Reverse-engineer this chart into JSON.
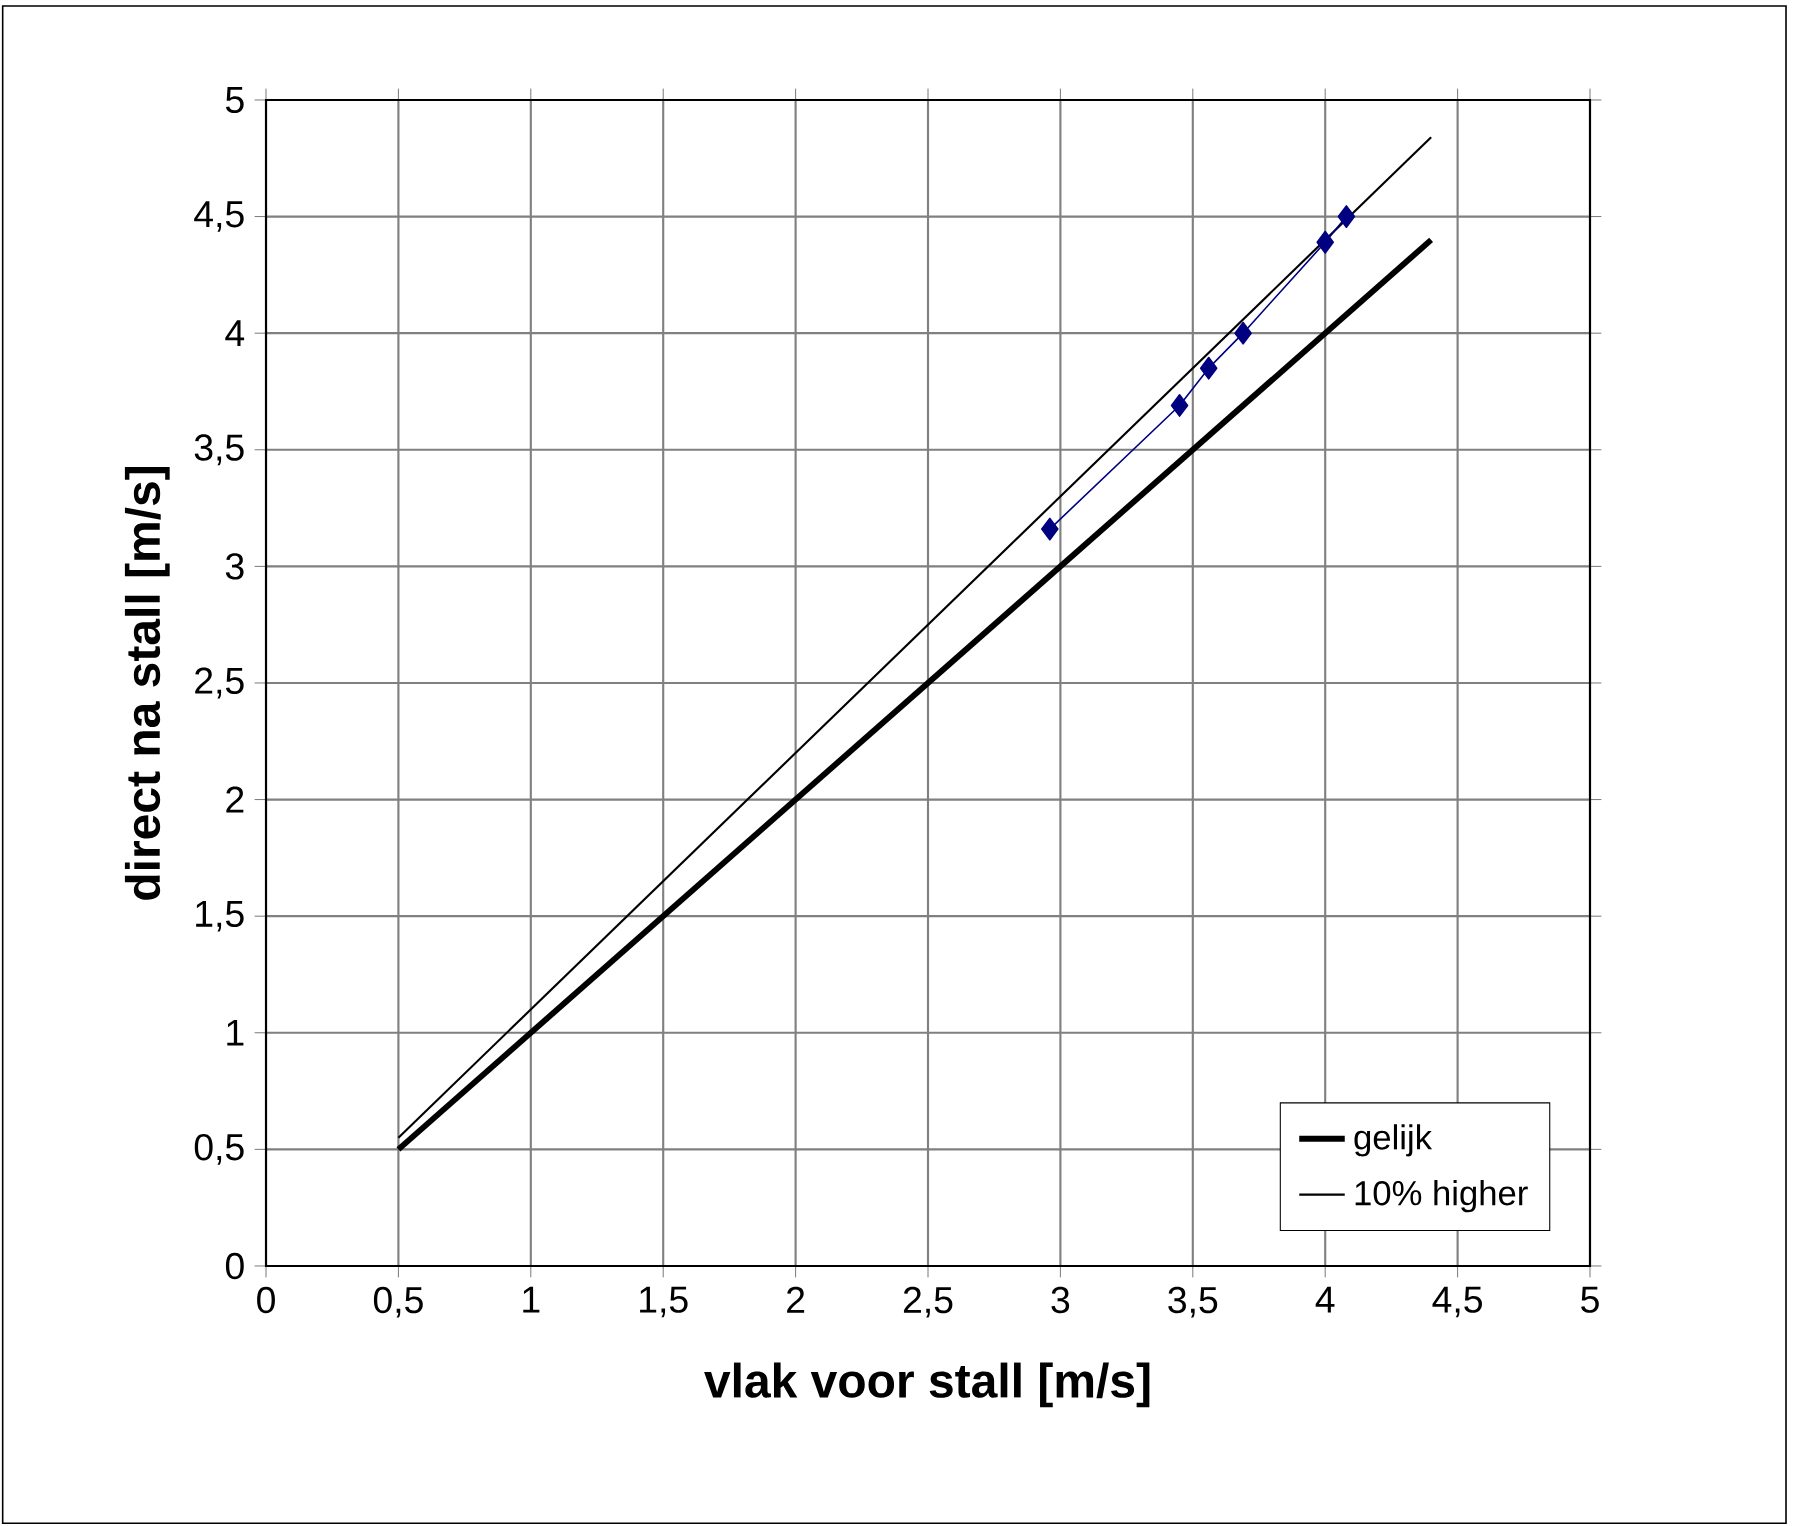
{
  "chart_data": {
    "type": "line",
    "xlabel": "vlak voor stall [m/s]",
    "ylabel": "direct na stall [m/s]",
    "xlim": [
      0,
      5
    ],
    "ylim": [
      0,
      5
    ],
    "xticks": [
      0,
      {
        "value": 0.5,
        "label": "0,5"
      },
      1,
      {
        "value": 1.5,
        "label": "1,5"
      },
      2,
      {
        "value": 2.5,
        "label": "2,5"
      },
      3,
      {
        "value": 3.5,
        "label": "3,5"
      },
      4,
      {
        "value": 4.5,
        "label": "4,5"
      },
      5
    ],
    "yticks": [
      0,
      {
        "value": 0.5,
        "label": "0,5"
      },
      1,
      {
        "value": 1.5,
        "label": "1,5"
      },
      2,
      {
        "value": 2.5,
        "label": "2,5"
      },
      3,
      {
        "value": 3.5,
        "label": "3,5"
      },
      4,
      {
        "value": 4.5,
        "label": "4,5"
      },
      5
    ],
    "grid": true,
    "legend": "bottom right",
    "series": [
      {
        "name": "gelijk",
        "color": "#000000",
        "x": [
          0.5,
          4.4
        ],
        "values": [
          0.5,
          4.4
        ],
        "marker": "none"
      },
      {
        "name": "10% higher",
        "color": "#000000",
        "x": [
          0.5,
          4.4
        ],
        "values": [
          0.55,
          4.84
        ],
        "marker": "none"
      },
      {
        "color": "#000080",
        "x": [
          2.96,
          3.45,
          3.56,
          3.69,
          4.0,
          4.08
        ],
        "values": [
          3.16,
          3.69,
          3.85,
          4.0,
          4.39,
          4.5
        ],
        "marker": "diamond"
      }
    ]
  }
}
